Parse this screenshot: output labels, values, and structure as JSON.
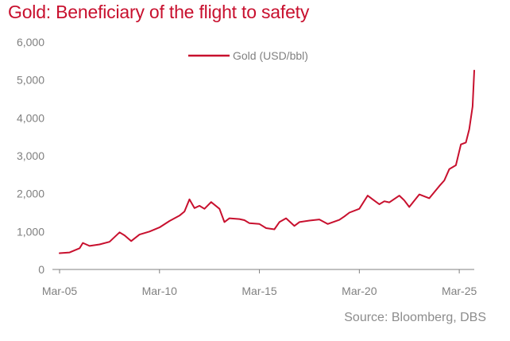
{
  "title": "Gold: Beneficiary of the flight to safety",
  "source": "Source: Bloomberg, DBS",
  "colors": {
    "series": "#c8102e",
    "title": "#c8102e",
    "axis": "#808080"
  },
  "chart_data": {
    "type": "line",
    "title": "Gold: Beneficiary of the flight to safety",
    "xlabel": "",
    "ylabel": "",
    "ylim": [
      0,
      6000
    ],
    "xlim": [
      "2005-03",
      "2025-12"
    ],
    "grid": false,
    "legend_position": "top-center",
    "x_tick_labels": [
      "Mar-05",
      "Mar-10",
      "Mar-15",
      "Mar-20",
      "Mar-25"
    ],
    "y_tick_labels": [
      "0",
      "1,000",
      "2,000",
      "3,000",
      "4,000",
      "5,000",
      "6,000"
    ],
    "series": [
      {
        "name": "Gold (USD/bbl)",
        "color": "#c8102e",
        "x": [
          "2005-03",
          "2005-09",
          "2006-03",
          "2006-05",
          "2006-09",
          "2007-03",
          "2007-09",
          "2008-03",
          "2008-06",
          "2008-10",
          "2009-03",
          "2009-09",
          "2010-03",
          "2010-09",
          "2011-03",
          "2011-06",
          "2011-09",
          "2011-12",
          "2012-03",
          "2012-06",
          "2012-10",
          "2013-03",
          "2013-06",
          "2013-09",
          "2014-03",
          "2014-06",
          "2014-09",
          "2015-03",
          "2015-07",
          "2015-12",
          "2016-03",
          "2016-07",
          "2016-12",
          "2017-03",
          "2017-09",
          "2018-03",
          "2018-08",
          "2019-03",
          "2019-06",
          "2019-09",
          "2020-03",
          "2020-08",
          "2020-11",
          "2021-03",
          "2021-06",
          "2021-09",
          "2022-03",
          "2022-06",
          "2022-09",
          "2022-11",
          "2023-03",
          "2023-09",
          "2024-03",
          "2024-06",
          "2024-09",
          "2025-01",
          "2025-04",
          "2025-07",
          "2025-09",
          "2025-11",
          "2025-12"
        ],
        "values": [
          430,
          450,
          560,
          700,
          620,
          660,
          730,
          980,
          900,
          750,
          920,
          1000,
          1110,
          1280,
          1420,
          1530,
          1850,
          1620,
          1680,
          1600,
          1780,
          1600,
          1250,
          1350,
          1330,
          1300,
          1220,
          1200,
          1090,
          1060,
          1250,
          1350,
          1150,
          1250,
          1290,
          1320,
          1200,
          1310,
          1400,
          1500,
          1600,
          1950,
          1850,
          1720,
          1800,
          1770,
          1950,
          1820,
          1650,
          1760,
          1980,
          1880,
          2200,
          2350,
          2650,
          2750,
          3300,
          3350,
          3700,
          4300,
          5250
        ]
      }
    ]
  }
}
